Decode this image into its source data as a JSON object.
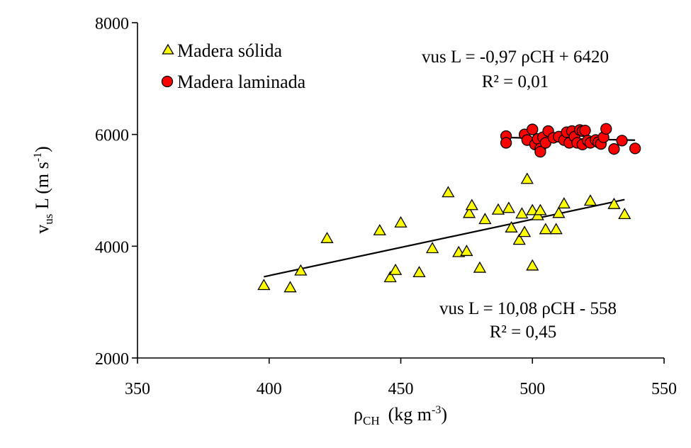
{
  "chart_data": {
    "type": "scatter",
    "xlabel_main": "ρ",
    "xlabel_sub": "CH",
    "xlabel_units": "(kg m",
    "xlabel_units_sup": "-3",
    "xlabel_units_end": ")",
    "ylabel_main": "v",
    "ylabel_sub": "us",
    "ylabel_mid": " L  (m s",
    "ylabel_sup": "-1",
    "ylabel_end": ")",
    "xlim": [
      350,
      550
    ],
    "ylim": [
      2000,
      8000
    ],
    "xticks": [
      350,
      400,
      450,
      500,
      550
    ],
    "yticks": [
      2000,
      4000,
      6000,
      8000
    ],
    "xtick_labels": [
      "350",
      "400",
      "450",
      "500",
      "550"
    ],
    "ytick_labels": [
      "2000",
      "4000",
      "6000",
      "8000"
    ],
    "legend": {
      "solid_label": "Madera sólida",
      "laminated_label": "Madera laminada"
    },
    "equations": {
      "laminated_eq": "vus L = -0,97 ρCH + 6420",
      "laminated_r2": "R² = 0,01",
      "solid_eq": "vus L = 10,08 ρCH - 558",
      "solid_r2": "R² = 0,45"
    },
    "colors": {
      "solid_fill": "#ffff00",
      "laminated_fill": "#ff0000",
      "marker_stroke": "#000000"
    },
    "series": [
      {
        "name": "Madera sólida",
        "marker": "triangle",
        "points": [
          [
            398,
            3300
          ],
          [
            408,
            3260
          ],
          [
            412,
            3560
          ],
          [
            422,
            4140
          ],
          [
            442,
            4280
          ],
          [
            446,
            3440
          ],
          [
            448,
            3570
          ],
          [
            450,
            4420
          ],
          [
            457,
            3530
          ],
          [
            462,
            3960
          ],
          [
            468,
            4960
          ],
          [
            472,
            3890
          ],
          [
            475,
            3910
          ],
          [
            476,
            4590
          ],
          [
            477,
            4730
          ],
          [
            480,
            3610
          ],
          [
            482,
            4480
          ],
          [
            487,
            4650
          ],
          [
            491,
            4680
          ],
          [
            492,
            4330
          ],
          [
            495,
            4110
          ],
          [
            496,
            4580
          ],
          [
            497,
            4250
          ],
          [
            498,
            5200
          ],
          [
            500,
            4640
          ],
          [
            500,
            3650
          ],
          [
            502,
            4550
          ],
          [
            503,
            4640
          ],
          [
            505,
            4300
          ],
          [
            509,
            4300
          ],
          [
            510,
            4590
          ],
          [
            512,
            4760
          ],
          [
            522,
            4810
          ],
          [
            531,
            4750
          ],
          [
            535,
            4570
          ]
        ],
        "trend": {
          "slope": 10.08,
          "intercept": -558,
          "x_range": [
            398,
            535
          ]
        }
      },
      {
        "name": "Madera laminada",
        "marker": "circle",
        "points": [
          [
            490,
            5970
          ],
          [
            490,
            5850
          ],
          [
            497,
            6000
          ],
          [
            498,
            5900
          ],
          [
            500,
            6090
          ],
          [
            501,
            5820
          ],
          [
            502,
            5920
          ],
          [
            503,
            5750
          ],
          [
            503,
            5690
          ],
          [
            504,
            5950
          ],
          [
            505,
            5850
          ],
          [
            506,
            6060
          ],
          [
            508,
            5940
          ],
          [
            510,
            5960
          ],
          [
            512,
            5900
          ],
          [
            513,
            6040
          ],
          [
            514,
            5850
          ],
          [
            515,
            6060
          ],
          [
            516,
            5960
          ],
          [
            517,
            5850
          ],
          [
            518,
            6080
          ],
          [
            519,
            6060
          ],
          [
            519,
            5820
          ],
          [
            520,
            6070
          ],
          [
            521,
            5890
          ],
          [
            522,
            5850
          ],
          [
            524,
            5900
          ],
          [
            525,
            5860
          ],
          [
            526,
            5830
          ],
          [
            527,
            5950
          ],
          [
            528,
            6100
          ],
          [
            531,
            5740
          ],
          [
            534,
            5890
          ],
          [
            539,
            5750
          ]
        ],
        "trend": {
          "slope": -0.97,
          "intercept": 6420,
          "x_range": [
            490,
            539
          ]
        }
      }
    ]
  }
}
